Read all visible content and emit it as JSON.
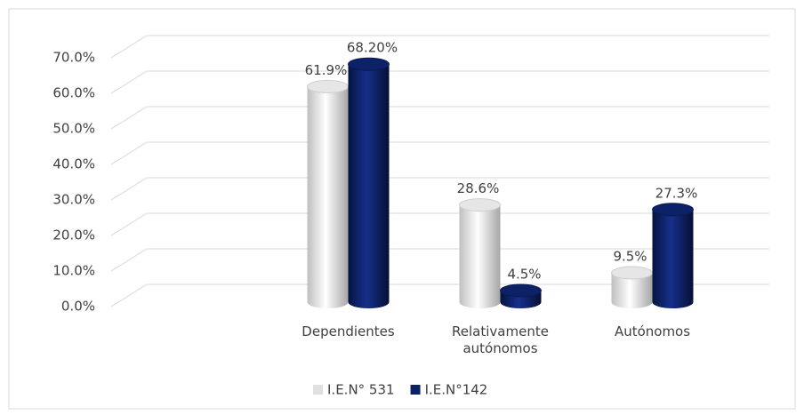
{
  "chart_data": {
    "type": "bar",
    "categories": [
      null,
      "Dependientes",
      "Relativamente autónomos",
      "Autónomos"
    ],
    "series": [
      {
        "name": "I.E.N° 531",
        "color": "#e6e6e6",
        "values": [
          null,
          61.9,
          28.6,
          9.5
        ],
        "value_labels": [
          null,
          "61.9%",
          "28.6%",
          "9.5%"
        ]
      },
      {
        "name": "I.E.N°142",
        "color": "#0d2167",
        "values": [
          null,
          68.2,
          4.5,
          27.3
        ],
        "value_labels": [
          null,
          "68.20%",
          "4.5%",
          "27.3%"
        ]
      }
    ],
    "ylim": [
      0,
      70
    ],
    "yticks": [
      {
        "value": 0,
        "label": "0.0%"
      },
      {
        "value": 10,
        "label": "10.0%"
      },
      {
        "value": 20,
        "label": "20.0%"
      },
      {
        "value": 30,
        "label": "30.0%"
      },
      {
        "value": 40,
        "label": "40.0%"
      },
      {
        "value": 50,
        "label": "50.0%"
      },
      {
        "value": 60,
        "label": "60.0%"
      },
      {
        "value": 70,
        "label": "70.0%"
      }
    ],
    "grid": true,
    "legend": "bottom"
  }
}
